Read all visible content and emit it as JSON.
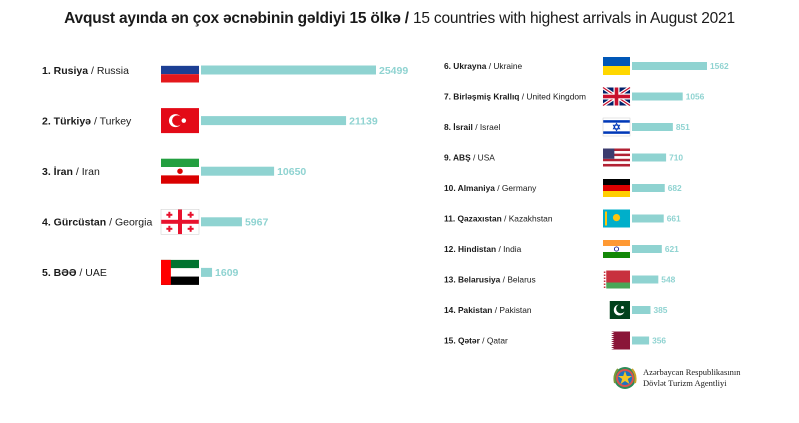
{
  "title": {
    "az": "Avqust ayında ən çox əcnəbinin gəldiyi 15 ölkə /",
    "en": " 15 countries with highest arrivals in August 2021"
  },
  "chart_data": {
    "type": "bar",
    "title": "Avqust ayında ən çox əcnəbinin gəldiyi 15 ölkə / 15 countries with highest arrivals in August 2021",
    "categories": [
      "1. Rusiya / Russia",
      "2. Türkiyə / Turkey",
      "3. İran / Iran",
      "4. Gürcüstan / Georgia",
      "5. BƏƏ / UAE",
      "6. Ukrayna / Ukraine",
      "7. Birləşmiş Krallıq / United Kingdom",
      "8. İsrail / Israel",
      "9. ABŞ / USA",
      "10. Almaniya / Germany",
      "11. Qazaxıstan / Kazakhstan",
      "12. Hindistan / India",
      "13. Belarusiya / Belarus",
      "14. Pakistan / Pakistan",
      "15. Qətər / Qatar"
    ],
    "values": [
      25499,
      21139,
      10650,
      5967,
      1609,
      1562,
      1056,
      851,
      710,
      682,
      661,
      621,
      548,
      385,
      356
    ],
    "bar_color": "#8fd3d1",
    "countries": [
      {
        "rank": "1.",
        "az": "Rusiya",
        "en": "Russia",
        "value": 25499,
        "flag": "russia-flag",
        "group": "left"
      },
      {
        "rank": "2.",
        "az": "Türkiyə",
        "en": "Turkey",
        "value": 21139,
        "flag": "turkey-flag",
        "group": "left"
      },
      {
        "rank": "3.",
        "az": "İran",
        "en": "Iran",
        "value": 10650,
        "flag": "iran-flag",
        "group": "left"
      },
      {
        "rank": "4.",
        "az": "Gürcüstan",
        "en": "Georgia",
        "value": 5967,
        "flag": "georgia-flag",
        "group": "left"
      },
      {
        "rank": "5.",
        "az": "BƏƏ",
        "en": "UAE",
        "value": 1609,
        "flag": "uae-flag",
        "group": "left"
      },
      {
        "rank": "6.",
        "az": "Ukrayna",
        "en": "Ukraine",
        "value": 1562,
        "flag": "ukraine-flag",
        "group": "right"
      },
      {
        "rank": "7.",
        "az": "Birləşmiş Krallıq",
        "en": "United Kingdom",
        "value": 1056,
        "flag": "uk-flag",
        "group": "right"
      },
      {
        "rank": "8.",
        "az": "İsrail",
        "en": "Israel",
        "value": 851,
        "flag": "israel-flag",
        "group": "right"
      },
      {
        "rank": "9.",
        "az": "ABŞ",
        "en": "USA",
        "value": 710,
        "flag": "usa-flag",
        "group": "right"
      },
      {
        "rank": "10.",
        "az": "Almaniya",
        "en": "Germany",
        "value": 682,
        "flag": "germany-flag",
        "group": "right"
      },
      {
        "rank": "11.",
        "az": "Qazaxıstan",
        "en": "Kazakhstan",
        "value": 661,
        "flag": "kazakhstan-flag",
        "group": "right"
      },
      {
        "rank": "12.",
        "az": "Hindistan",
        "en": "India",
        "value": 621,
        "flag": "india-flag",
        "group": "right"
      },
      {
        "rank": "13.",
        "az": "Belarusiya",
        "en": "Belarus",
        "value": 548,
        "flag": "belarus-flag",
        "group": "right"
      },
      {
        "rank": "14.",
        "az": "Pakistan",
        "en": "Pakistan",
        "value": 385,
        "flag": "pakistan-flag",
        "group": "right"
      },
      {
        "rank": "15.",
        "az": "Qətər",
        "en": "Qatar",
        "value": 356,
        "flag": "qatar-flag",
        "group": "right"
      }
    ]
  },
  "credit": {
    "line1": "Azərbaycan Respublikasının",
    "line2": "Dövlət Turizm Agentliyi",
    "emblem": "azerbaijan-emblem-icon"
  }
}
